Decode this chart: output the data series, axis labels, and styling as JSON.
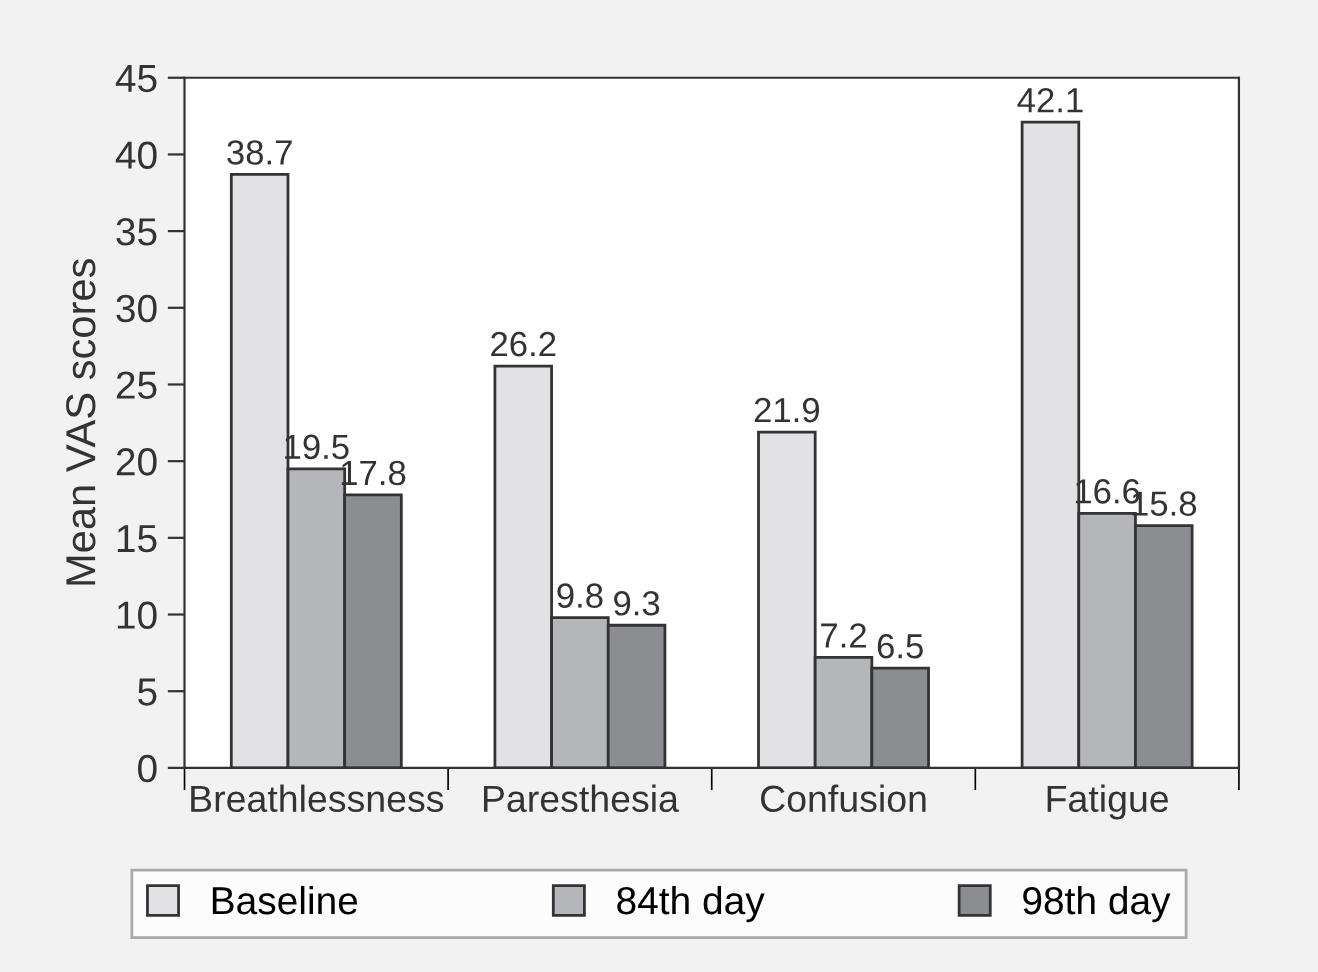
{
  "chart_data": {
    "type": "bar",
    "ylabel": "Mean VAS scores",
    "categories": [
      "Breathlessness",
      "Paresthesia",
      "Confusion",
      "Fatigue"
    ],
    "series": [
      {
        "name": "Baseline",
        "color": "#e2e2e4",
        "values": [
          38.7,
          26.2,
          21.9,
          42.1
        ]
      },
      {
        "name": "84th day",
        "color": "#b5b6b9",
        "values": [
          19.5,
          9.8,
          7.2,
          16.6
        ]
      },
      {
        "name": "98th day",
        "color": "#8c8d91",
        "values": [
          17.8,
          9.3,
          6.5,
          15.8
        ]
      }
    ],
    "ylim": [
      0,
      45
    ],
    "yticks": [
      0,
      5,
      10,
      15,
      20,
      25,
      30,
      35,
      40,
      45
    ],
    "data_labels": true,
    "legend": "bottom",
    "grid": false
  }
}
